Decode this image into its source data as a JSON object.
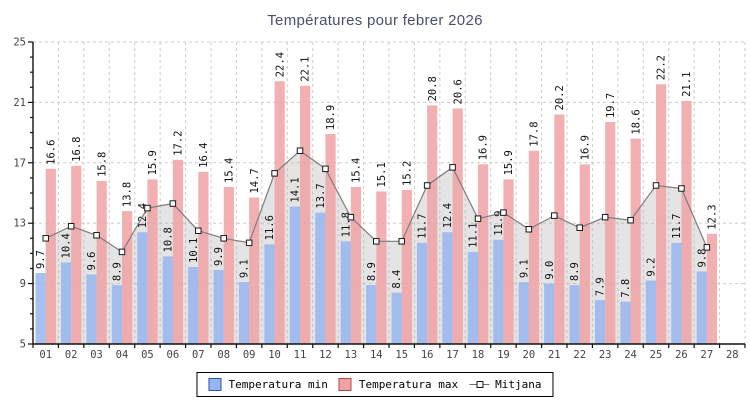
{
  "chart_data": {
    "type": "bar",
    "title": "Températures pour febrer 2026",
    "categories": [
      "01",
      "02",
      "03",
      "04",
      "05",
      "06",
      "07",
      "08",
      "09",
      "10",
      "11",
      "12",
      "13",
      "14",
      "15",
      "16",
      "17",
      "18",
      "19",
      "20",
      "21",
      "22",
      "23",
      "24",
      "25",
      "26",
      "27",
      "28"
    ],
    "series": [
      {
        "name": "Temperatura min",
        "type": "bar",
        "values": [
          9.7,
          10.4,
          9.6,
          8.9,
          12.4,
          10.8,
          10.1,
          9.9,
          9.1,
          11.6,
          14.1,
          13.7,
          11.8,
          8.9,
          8.4,
          11.7,
          12.4,
          11.1,
          11.9,
          9.1,
          9.0,
          8.9,
          7.9,
          7.8,
          9.2,
          11.7,
          9.8,
          null
        ]
      },
      {
        "name": "Temperatura max",
        "type": "bar",
        "values": [
          16.6,
          16.8,
          15.8,
          13.8,
          15.9,
          17.2,
          16.4,
          15.4,
          14.7,
          22.4,
          22.1,
          18.9,
          15.4,
          15.1,
          15.2,
          20.8,
          20.6,
          16.9,
          15.9,
          17.8,
          20.2,
          16.9,
          19.7,
          18.6,
          22.2,
          21.1,
          12.3,
          null
        ]
      },
      {
        "name": "Mitjana",
        "type": "line",
        "values": [
          12.0,
          12.8,
          12.2,
          11.1,
          14.0,
          14.3,
          12.5,
          12.0,
          11.7,
          16.3,
          17.8,
          16.6,
          13.4,
          11.8,
          11.8,
          15.5,
          16.7,
          13.3,
          13.7,
          12.6,
          13.5,
          12.7,
          13.4,
          13.2,
          15.5,
          15.3,
          11.4,
          null
        ]
      }
    ],
    "xlabel": "",
    "ylabel": "",
    "ylim": [
      5,
      25
    ],
    "yticks": [
      5,
      9,
      13,
      17,
      21,
      25
    ],
    "grid": true,
    "legend_position": "bottom",
    "bar_value_labels_rotated": true,
    "colors": {
      "min_bar": "#97b5ef",
      "min_border": "#3350b5",
      "max_bar": "#f0a2a5",
      "max_border": "#b24a4a",
      "mitjana_line": "#7d7d7d",
      "mitjana_marker_fill": "#ffffff",
      "mitjana_marker_stroke": "#1a1a1a",
      "mitjana_area": "rgba(185,185,185,0.38)",
      "grid": "#cccccc",
      "axis": "#111111",
      "tick_label": "#444444",
      "bar_label": "#111111",
      "title": "#475169"
    }
  }
}
